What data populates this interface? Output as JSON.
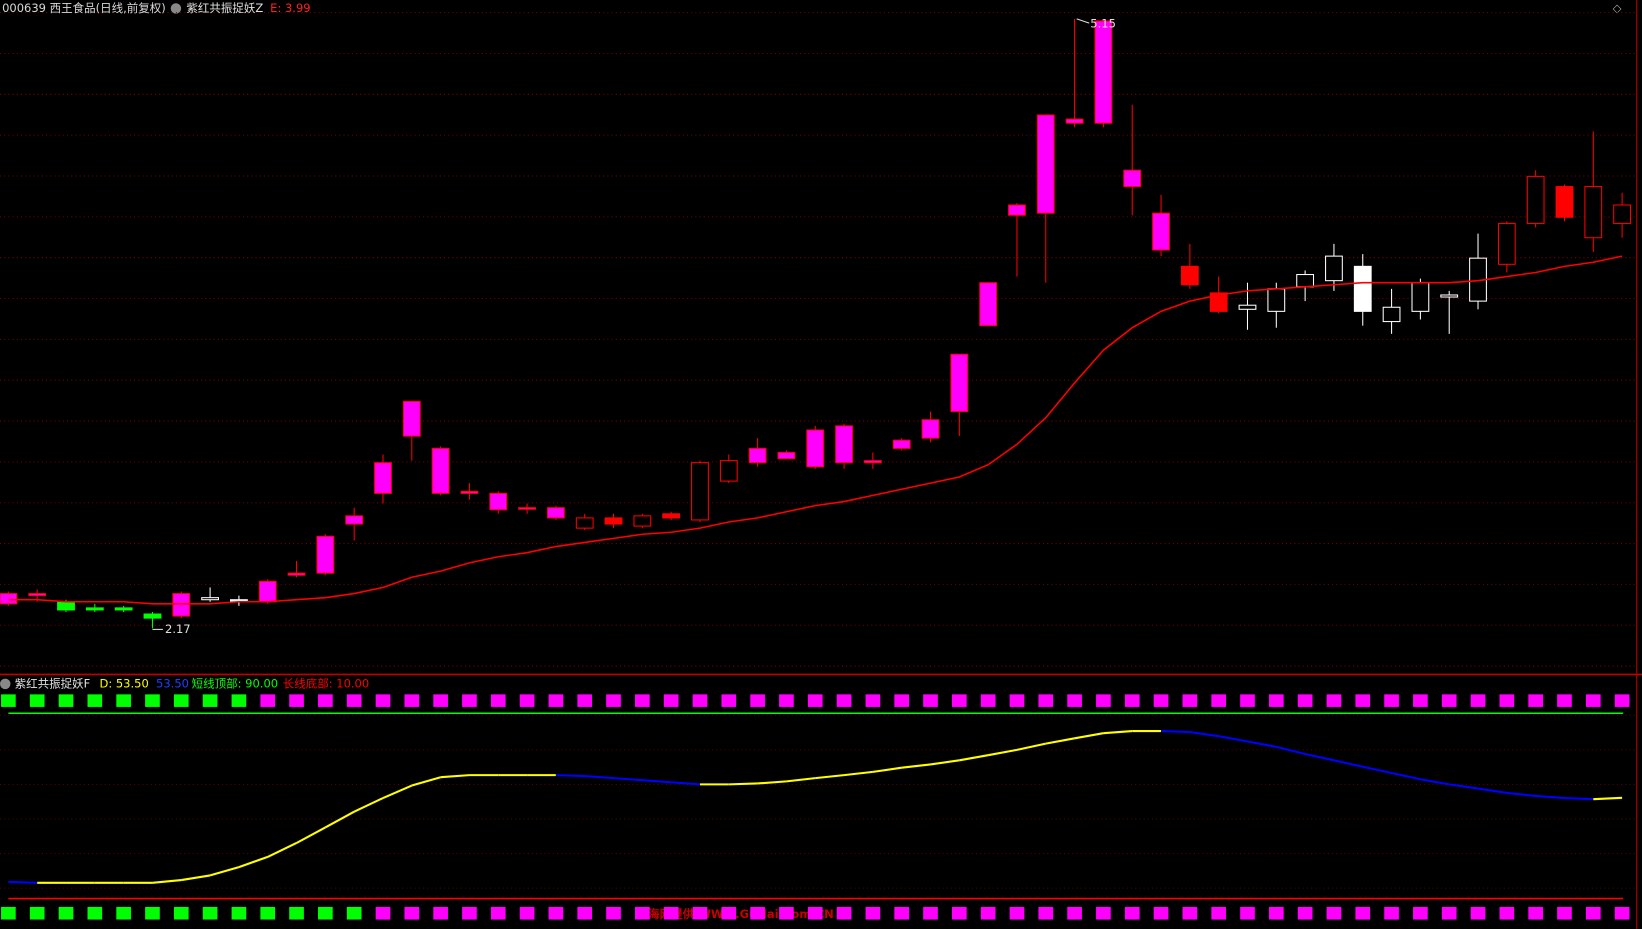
{
  "chart_data": [
    {
      "type": "candlestick",
      "title": "000639 西王食品(日线,前复权)",
      "indicator": "紫红共振捉妖Z",
      "indicator_readout": "E: 3.99",
      "ylim": [
        1.965,
        5.242
      ],
      "grid": true,
      "open": [
        2.29,
        2.33,
        2.3,
        2.27,
        2.27,
        2.24,
        2.23,
        2.31,
        2.31,
        2.3,
        2.43,
        2.44,
        2.68,
        2.83,
        3.11,
        3.05,
        2.84,
        2.83,
        2.76,
        2.76,
        2.66,
        2.71,
        2.67,
        2.73,
        2.7,
        2.89,
        2.98,
        3.0,
        2.96,
        2.98,
        2.98,
        3.05,
        3.1,
        3.23,
        3.65,
        4.19,
        4.2,
        4.64,
        4.64,
        4.41,
        4.2,
        3.94,
        3.81,
        3.73,
        3.72,
        3.84,
        3.87,
        3.94,
        3.67,
        3.72,
        3.79,
        3.77,
        3.95,
        4.15,
        4.33,
        4.08,
        4.15
      ],
      "high": [
        2.35,
        2.36,
        2.31,
        2.29,
        2.28,
        2.25,
        2.35,
        2.37,
        2.33,
        2.41,
        2.5,
        2.63,
        2.76,
        3.02,
        3.28,
        3.06,
        2.88,
        2.84,
        2.78,
        2.77,
        2.73,
        2.73,
        2.73,
        2.74,
        2.99,
        3.02,
        3.1,
        3.04,
        3.16,
        3.17,
        3.03,
        3.1,
        3.23,
        3.51,
        3.86,
        4.25,
        4.68,
        5.15,
        5.14,
        4.73,
        4.29,
        4.05,
        3.89,
        3.86,
        3.86,
        3.92,
        4.05,
        4.0,
        3.83,
        3.88,
        3.82,
        4.1,
        4.16,
        4.41,
        4.34,
        4.6,
        4.3
      ],
      "low": [
        2.28,
        2.3,
        2.25,
        2.25,
        2.25,
        2.17,
        2.22,
        2.3,
        2.28,
        2.29,
        2.42,
        2.43,
        2.6,
        2.78,
        2.99,
        2.82,
        2.8,
        2.73,
        2.73,
        2.7,
        2.65,
        2.66,
        2.66,
        2.7,
        2.69,
        2.88,
        2.96,
        3.0,
        2.95,
        2.95,
        2.95,
        3.04,
        3.08,
        3.11,
        3.65,
        3.89,
        3.86,
        4.62,
        4.62,
        4.19,
        3.99,
        3.83,
        3.71,
        3.63,
        3.64,
        3.77,
        3.82,
        3.65,
        3.61,
        3.68,
        3.61,
        3.73,
        3.91,
        4.13,
        4.16,
        4.01,
        4.08
      ],
      "close": [
        2.34,
        2.34,
        2.26,
        2.26,
        2.26,
        2.22,
        2.34,
        2.32,
        2.31,
        2.4,
        2.44,
        2.62,
        2.72,
        2.98,
        3.28,
        2.83,
        2.83,
        2.75,
        2.76,
        2.71,
        2.71,
        2.68,
        2.72,
        2.71,
        2.98,
        2.99,
        3.05,
        3.03,
        3.14,
        3.16,
        2.99,
        3.09,
        3.19,
        3.51,
        3.86,
        4.24,
        4.68,
        4.66,
        5.14,
        4.33,
        4.02,
        3.85,
        3.72,
        3.75,
        3.83,
        3.9,
        3.99,
        3.72,
        3.74,
        3.86,
        3.8,
        3.98,
        4.15,
        4.38,
        4.18,
        4.33,
        4.24
      ],
      "colors": [
        "#ff00ff",
        "#ff00ff",
        "#00ff00",
        "#00ff00",
        "#00ff00",
        "#00ff00",
        "#ff00ff",
        "#ffffff",
        "#ffffff",
        "#ff00ff",
        "#ff00ff",
        "#ff00ff",
        "#ff00ff",
        "#ff00ff",
        "#ff00ff",
        "#ff00ff",
        "#ff00ff",
        "#ff00ff",
        "#ff00ff",
        "#ff00ff",
        "#ff0000",
        "#ff0000",
        "#ff0000",
        "#ff0000",
        "#ff0000",
        "#ff0000",
        "#ff00ff",
        "#ff00ff",
        "#ff00ff",
        "#ff00ff",
        "#ff00ff",
        "#ff00ff",
        "#ff00ff",
        "#ff00ff",
        "#ff00ff",
        "#ff00ff",
        "#ff00ff",
        "#ff00ff",
        "#ff00ff",
        "#ff00ff",
        "#ff00ff",
        "#ff0000",
        "#ff0000",
        "#ffffff",
        "#ffffff",
        "#ffffff",
        "#ffffff",
        "#ffffff",
        "#ffffff",
        "#ffffff",
        "#ffffff",
        "#ffffff",
        "#ff0000",
        "#ff0000",
        "#ff0000",
        "#ff0000",
        "#ff0000"
      ],
      "ma": {
        "color": "#ff0000",
        "values": [
          2.31,
          2.31,
          2.3,
          2.3,
          2.3,
          2.29,
          2.29,
          2.29,
          2.3,
          2.3,
          2.31,
          2.32,
          2.34,
          2.37,
          2.42,
          2.45,
          2.49,
          2.52,
          2.54,
          2.57,
          2.59,
          2.61,
          2.63,
          2.64,
          2.66,
          2.69,
          2.71,
          2.74,
          2.77,
          2.79,
          2.82,
          2.85,
          2.88,
          2.91,
          2.97,
          3.07,
          3.2,
          3.37,
          3.53,
          3.64,
          3.72,
          3.77,
          3.8,
          3.82,
          3.83,
          3.84,
          3.85,
          3.86,
          3.86,
          3.86,
          3.86,
          3.87,
          3.89,
          3.91,
          3.94,
          3.96,
          3.99
        ]
      },
      "high_marker_index": 37,
      "low_marker_index": 5,
      "watermark": "股海网提供 WWW.GuHai.Com.CN"
    },
    {
      "type": "line",
      "title": "紫红共振捉妖F",
      "readouts": [
        {
          "value": 53.5,
          "label": "D: 53.50",
          "color": "#ffff00"
        },
        {
          "value": 53.5,
          "label": "53.50",
          "color": "#2040ff"
        }
      ],
      "ylim": [
        -3.1,
        106.3
      ],
      "reference_lines": [
        {
          "value": 90,
          "label": "短线顶部: 90.00",
          "color": "#00ff00"
        },
        {
          "value": 10,
          "label": "长线底部: 10.00",
          "color": "#ff0000"
        }
      ],
      "rising_color": "#ffff00",
      "falling_color": "#0000ff",
      "values": [
        17.2,
        16.8,
        16.8,
        16.8,
        16.8,
        16.8,
        18,
        20,
        23.6,
        28,
        34,
        40.7,
        47.5,
        53.4,
        58.8,
        62.4,
        63.3,
        63.3,
        63.3,
        63.3,
        62.9,
        62,
        61.1,
        60.2,
        59.3,
        59.3,
        59.7,
        60.6,
        62,
        63.3,
        64.7,
        66.5,
        67.9,
        69.7,
        71.9,
        74.2,
        76.9,
        79.2,
        81.4,
        82.3,
        82.3,
        81.9,
        80.1,
        77.8,
        75.5,
        72.4,
        69.7,
        66.9,
        64.2,
        61.5,
        59.3,
        57.5,
        55.6,
        54.3,
        53.4,
        52.9,
        53.5
      ],
      "top_signals": [
        "#00ff00",
        "#00ff00",
        "#00ff00",
        "#00ff00",
        "#00ff00",
        "#00ff00",
        "#00ff00",
        "#00ff00",
        "#00ff00",
        "#ff00ff",
        "#ff00ff",
        "#ff00ff",
        "#ff00ff",
        "#ff00ff",
        "#ff00ff",
        "#ff00ff",
        "#ff00ff",
        "#ff00ff",
        "#ff00ff",
        "#ff00ff",
        "#ff00ff",
        "#ff00ff",
        "#ff00ff",
        "#ff00ff",
        "#ff00ff",
        "#ff00ff",
        "#ff00ff",
        "#ff00ff",
        "#ff00ff",
        "#ff00ff",
        "#ff00ff",
        "#ff00ff",
        "#ff00ff",
        "#ff00ff",
        "#ff00ff",
        "#ff00ff",
        "#ff00ff",
        "#ff00ff",
        "#ff00ff",
        "#ff00ff",
        "#ff00ff",
        "#ff00ff",
        "#ff00ff",
        "#ff00ff",
        "#ff00ff",
        "#ff00ff",
        "#ff00ff",
        "#ff00ff",
        "#ff00ff",
        "#ff00ff",
        "#ff00ff",
        "#ff00ff",
        "#ff00ff",
        "#ff00ff",
        "#ff00ff",
        "#ff00ff",
        "#ff00ff"
      ],
      "bottom_signals": [
        "#00ff00",
        "#00ff00",
        "#00ff00",
        "#00ff00",
        "#00ff00",
        "#00ff00",
        "#00ff00",
        "#00ff00",
        "#00ff00",
        "#00ff00",
        "#00ff00",
        "#00ff00",
        "#00ff00",
        "#ff00ff",
        "#ff00ff",
        "#ff00ff",
        "#ff00ff",
        "#ff00ff",
        "#ff00ff",
        "#ff00ff",
        "#ff00ff",
        "#ff00ff",
        "#ff00ff",
        "#ff00ff",
        "#ff00ff",
        "#ff00ff",
        "#ff00ff",
        "#ff00ff",
        "#ff00ff",
        "#ff00ff",
        "#ff00ff",
        "#ff00ff",
        "#ff00ff",
        "#ff00ff",
        "#ff00ff",
        "#ff00ff",
        "#ff00ff",
        "#ff00ff",
        "#ff00ff",
        "#ff00ff",
        "#ff00ff",
        "#ff00ff",
        "#ff00ff",
        "#ff00ff",
        "#ff00ff",
        "#ff00ff",
        "#ff00ff",
        "#ff00ff",
        "#ff00ff",
        "#ff00ff",
        "#ff00ff",
        "#ff00ff",
        "#ff00ff",
        "#ff00ff",
        "#ff00ff",
        "#ff00ff",
        "#ff00ff"
      ]
    }
  ]
}
